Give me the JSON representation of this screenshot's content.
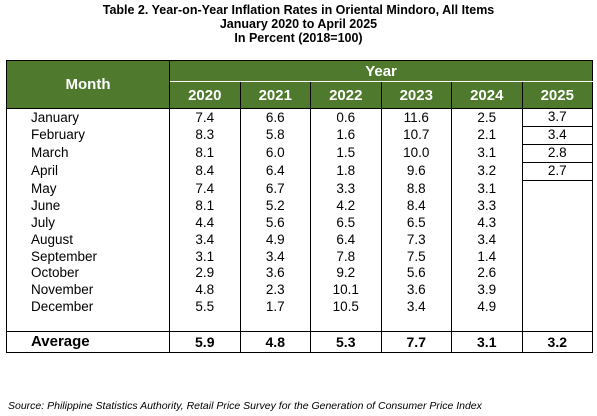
{
  "title_line1": "Table 2. Year-on-Year Inflation Rates in Oriental Mindoro, All Items",
  "title_line2": "January 2020 to April 2025",
  "title_line3": "In Percent (2018=100)",
  "header": {
    "month": "Month",
    "year": "Year",
    "years": [
      "2020",
      "2021",
      "2022",
      "2023",
      "2024",
      "2025"
    ]
  },
  "rows": [
    {
      "month": "January",
      "values": [
        "7.4",
        "6.6",
        "0.6",
        "11.6",
        "2.5",
        "3.7"
      ]
    },
    {
      "month": "February",
      "values": [
        "8.3",
        "5.8",
        "1.6",
        "10.7",
        "2.1",
        "3.4"
      ]
    },
    {
      "month": "March",
      "values": [
        "8.1",
        "6.0",
        "1.5",
        "10.0",
        "3.1",
        "2.8"
      ]
    },
    {
      "month": "April",
      "values": [
        "8.4",
        "6.4",
        "1.8",
        "9.6",
        "3.2",
        "2.7"
      ]
    },
    {
      "month": "May",
      "values": [
        "7.4",
        "6.7",
        "3.3",
        "8.8",
        "3.1",
        ""
      ]
    },
    {
      "month": "June",
      "values": [
        "8.1",
        "5.2",
        "4.2",
        "8.4",
        "3.3",
        ""
      ]
    },
    {
      "month": "July",
      "values": [
        "4.4",
        "5.6",
        "6.5",
        "6.5",
        "4.3",
        ""
      ]
    },
    {
      "month": "August",
      "values": [
        "3.4",
        "4.9",
        "6.4",
        "7.3",
        "3.4",
        ""
      ]
    },
    {
      "month": "September",
      "values": [
        "3.1",
        "3.4",
        "7.8",
        "7.5",
        "1.4",
        ""
      ]
    },
    {
      "month": "October",
      "values": [
        "2.9",
        "3.6",
        "9.2",
        "5.6",
        "2.6",
        ""
      ]
    },
    {
      "month": "November",
      "values": [
        "4.8",
        "2.3",
        "10.1",
        "3.6",
        "3.9",
        ""
      ]
    },
    {
      "month": "December",
      "values": [
        "5.5",
        "1.7",
        "10.5",
        "3.4",
        "4.9",
        ""
      ]
    }
  ],
  "average": {
    "label": "Average",
    "values": [
      "5.9",
      "4.8",
      "5.3",
      "7.7",
      "3.1",
      "3.2"
    ]
  },
  "source": "Source: Philippine Statistics Authority, Retail Price Survey for the Generation of Consumer Price Index",
  "colors": {
    "header_bg": "#4f7a2d",
    "header_text": "#ffffff"
  }
}
